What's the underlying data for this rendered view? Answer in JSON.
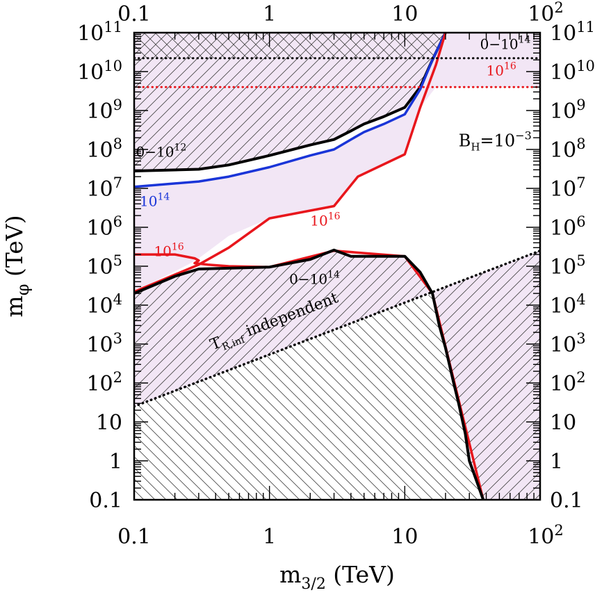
{
  "chart_data": {
    "type": "line",
    "title": "",
    "xlabel": {
      "base": "m",
      "sub": "3/2",
      "unit": " (TeV)"
    },
    "ylabel": {
      "base": "m",
      "sub": "φ",
      "unit": " (TeV)"
    },
    "xscale": "log",
    "yscale": "log",
    "xlim": [
      0.1,
      100
    ],
    "ylim": [
      0.1,
      100000000000.0
    ],
    "grid": false,
    "x_ticks": [
      {
        "value": 0.1,
        "label": "0.1"
      },
      {
        "value": 1,
        "label": "1"
      },
      {
        "value": 10,
        "label": "10"
      },
      {
        "value": 100,
        "label": "10",
        "sup": "2"
      }
    ],
    "y_ticks": [
      {
        "value": 0.1,
        "label": "0.1"
      },
      {
        "value": 1,
        "label": "1"
      },
      {
        "value": 10,
        "label": "10"
      },
      {
        "value": 100,
        "label": "10",
        "sup": "2"
      },
      {
        "value": 1000.0,
        "label": "10",
        "sup": "3"
      },
      {
        "value": 10000.0,
        "label": "10",
        "sup": "4"
      },
      {
        "value": 100000.0,
        "label": "10",
        "sup": "5"
      },
      {
        "value": 1000000.0,
        "label": "10",
        "sup": "6"
      },
      {
        "value": 10000000.0,
        "label": "10",
        "sup": "7"
      },
      {
        "value": 100000000.0,
        "label": "10",
        "sup": "8"
      },
      {
        "value": 1000000000.0,
        "label": "10",
        "sup": "9"
      },
      {
        "value": 10000000000.0,
        "label": "10",
        "sup": "10"
      },
      {
        "value": 100000000000.0,
        "label": "10",
        "sup": "11"
      }
    ],
    "colors": {
      "shade": "#f2e6f5",
      "black": "#000000",
      "blue": "#1a35d8",
      "red": "#e8161c"
    },
    "regions": [
      {
        "name": "upper-excluded",
        "fill": "shade",
        "hatch": "diag",
        "points": [
          [
            0.1,
            100000000000.0
          ],
          [
            0.1,
            28000000.0
          ],
          [
            0.3,
            31000000.0
          ],
          [
            1,
            70000000.0
          ],
          [
            3,
            180000000.0
          ],
          [
            5,
            450000000.0
          ],
          [
            10,
            1200000000.0
          ],
          [
            13,
            4000000000.0
          ],
          [
            20,
            100000000000.0
          ]
        ]
      },
      {
        "name": "upper-crosshatch",
        "fill": "none",
        "hatch": "anti",
        "points": [
          [
            0.1,
            100000000000.0
          ],
          [
            0.1,
            22000000000.0
          ],
          [
            20,
            22000000000.0
          ],
          [
            20,
            100000000000.0
          ]
        ]
      },
      {
        "name": "upper-extra-shade",
        "fill": "shade",
        "hatch": "none",
        "points": [
          [
            0.1,
            28000000.0
          ],
          [
            0.1,
            11000000.0
          ],
          [
            0.3,
            15000000.0
          ],
          [
            1,
            35000000.0
          ],
          [
            3,
            100000000.0
          ],
          [
            5,
            280000000.0
          ],
          [
            10,
            800000000.0
          ],
          [
            13,
            3500000000.0
          ],
          [
            20,
            100000000000.0
          ],
          [
            100,
            100000000000.0
          ],
          [
            100,
            4000000000.0
          ],
          [
            17,
            4000000000.0
          ],
          [
            13,
            1200000000.0
          ],
          [
            10,
            75000000.0
          ],
          [
            4.5,
            20000000.0
          ],
          [
            3,
            3500000.0
          ],
          [
            1,
            1700000.0
          ],
          [
            0.5,
            600000.0
          ],
          [
            0.3,
            160000.0
          ],
          [
            0.25,
            110000.0
          ],
          [
            0.1,
            22000.0
          ]
        ]
      },
      {
        "name": "lower-excluded",
        "fill": "shade",
        "hatch": "diag",
        "points": [
          [
            0.1,
            20000.0
          ],
          [
            0.2,
            55000.0
          ],
          [
            0.3,
            85000.0
          ],
          [
            1,
            95000.0
          ],
          [
            2,
            150000.0
          ],
          [
            3,
            260000.0
          ],
          [
            4,
            180000.0
          ],
          [
            10,
            180000.0
          ],
          [
            16,
            20000.0
          ],
          [
            20,
            800
          ],
          [
            25,
            30
          ],
          [
            30,
            1
          ],
          [
            38,
            0.1
          ],
          [
            100,
            0.1
          ],
          [
            100,
            250000.0
          ],
          [
            0.1,
            25
          ]
        ]
      },
      {
        "name": "lower-crosshatch",
        "fill": "none",
        "hatch": "anti",
        "points": [
          [
            0.1,
            25
          ],
          [
            16,
            20000.0
          ],
          [
            20,
            800
          ],
          [
            25,
            30
          ],
          [
            30,
            1
          ],
          [
            38,
            0.1
          ],
          [
            0.1,
            0.1
          ]
        ]
      }
    ],
    "series": [
      {
        "name": "black-upper",
        "label": "0−10¹²",
        "color": "black",
        "width": 4,
        "style": "solid",
        "points": [
          [
            0.1,
            28000000.0
          ],
          [
            0.3,
            31000000.0
          ],
          [
            0.5,
            40000000.0
          ],
          [
            1,
            70000000.0
          ],
          [
            2,
            130000000.0
          ],
          [
            3,
            180000000.0
          ],
          [
            4,
            300000000.0
          ],
          [
            5,
            450000000.0
          ],
          [
            7,
            700000000.0
          ],
          [
            10,
            1200000000.0
          ],
          [
            13,
            4000000000.0
          ],
          [
            16,
            20000000000.0
          ],
          [
            20,
            100000000000.0
          ]
        ]
      },
      {
        "name": "blue-upper",
        "label": "10¹⁴",
        "color": "blue",
        "width": 3.5,
        "style": "solid",
        "points": [
          [
            0.1,
            11000000.0
          ],
          [
            0.3,
            15000000.0
          ],
          [
            0.5,
            20000000.0
          ],
          [
            1,
            35000000.0
          ],
          [
            2,
            70000000.0
          ],
          [
            3,
            100000000.0
          ],
          [
            4,
            180000000.0
          ],
          [
            5,
            280000000.0
          ],
          [
            7,
            450000000.0
          ],
          [
            10,
            800000000.0
          ],
          [
            13,
            3500000000.0
          ],
          [
            16,
            20000000000.0
          ],
          [
            20,
            100000000000.0
          ]
        ]
      },
      {
        "name": "red-upper",
        "label": "10¹⁶",
        "color": "red",
        "width": 3.5,
        "style": "solid",
        "points": [
          [
            0.1,
            22000.0
          ],
          [
            0.3,
            110000.0
          ],
          [
            0.5,
            300000.0
          ],
          [
            1,
            1700000.0
          ],
          [
            3,
            3500000.0
          ],
          [
            4.5,
            20000000.0
          ],
          [
            10,
            75000000.0
          ],
          [
            13,
            1200000000.0
          ],
          [
            17,
            15000000000.0
          ],
          [
            20,
            100000000000.0
          ]
        ]
      },
      {
        "name": "red-lower-loop",
        "label": "10¹⁶",
        "color": "red",
        "width": 3.5,
        "style": "solid",
        "points": [
          [
            0.1,
            200000.0
          ],
          [
            0.2,
            200000.0
          ],
          [
            0.28,
            160000.0
          ],
          [
            0.3,
            140000.0
          ],
          [
            0.28,
            120000.0
          ],
          [
            0.35,
            110000.0
          ],
          [
            0.5,
            100000.0
          ],
          [
            1,
            95000.0
          ],
          [
            3,
            250000.0
          ],
          [
            10,
            180000.0
          ],
          [
            16,
            20000.0
          ],
          [
            38,
            0.1
          ]
        ]
      },
      {
        "name": "black-lower",
        "label": "0−10¹⁴",
        "color": "black",
        "width": 4,
        "style": "solid",
        "points": [
          [
            0.1,
            20000.0
          ],
          [
            0.2,
            55000.0
          ],
          [
            0.3,
            85000.0
          ],
          [
            1,
            95000.0
          ],
          [
            2,
            150000.0
          ],
          [
            3,
            260000.0
          ],
          [
            4,
            180000.0
          ],
          [
            10,
            180000.0
          ],
          [
            13,
            70000.0
          ],
          [
            16,
            20000.0
          ],
          [
            18,
            3000.0
          ],
          [
            20,
            800
          ],
          [
            23,
            100
          ],
          [
            25,
            30
          ],
          [
            28,
            5
          ],
          [
            30,
            1
          ],
          [
            34,
            0.3
          ],
          [
            38,
            0.1
          ]
        ]
      },
      {
        "name": "black-dotted-top",
        "label": "0−10¹⁴",
        "color": "black",
        "width": 3,
        "style": "dotted",
        "points": [
          [
            0.1,
            22000000000.0
          ],
          [
            100,
            22000000000.0
          ]
        ]
      },
      {
        "name": "red-dotted-top",
        "label": "10¹⁶",
        "color": "red",
        "width": 3,
        "style": "dotted",
        "points": [
          [
            0.1,
            4000000000.0
          ],
          [
            100,
            4000000000.0
          ]
        ]
      },
      {
        "name": "tr-independent",
        "label": "T_R,inf independent",
        "color": "black",
        "width": 3.5,
        "style": "dotted",
        "points": [
          [
            0.1,
            25
          ],
          [
            100,
            250000.0
          ]
        ]
      }
    ],
    "annotations": [
      {
        "id": "ann-black-upper",
        "text": "0−10",
        "sup": "12",
        "x": 0.103,
        "y": 65000000.0,
        "color": "black"
      },
      {
        "id": "ann-blue-upper",
        "text": "10",
        "sup": "14",
        "x": 0.11,
        "y": 3500000.0,
        "color": "blue"
      },
      {
        "id": "ann-red-upper",
        "text": "10",
        "sup": "16",
        "x": 2.0,
        "y": 1100000.0,
        "color": "red"
      },
      {
        "id": "ann-red-lower",
        "text": "10",
        "sup": "16",
        "x": 0.14,
        "y": 180000.0,
        "color": "red"
      },
      {
        "id": "ann-black-lower",
        "text": "0−10",
        "sup": "14",
        "x": 1.4,
        "y": 35000.0,
        "color": "black"
      },
      {
        "id": "ann-black-top",
        "text": "0−10",
        "sup": "14",
        "x": 36,
        "y": 38000000000.0,
        "color": "black"
      },
      {
        "id": "ann-red-top",
        "text": "10",
        "sup": "16",
        "x": 40,
        "y": 8000000000.0,
        "color": "red"
      }
    ],
    "bh_label": {
      "base": "B",
      "sub": "H",
      "rhs": "=10",
      "sup": "−3",
      "x": 25,
      "y": 120000000.0
    },
    "tr_label": {
      "base": "T",
      "sub": "R,inf",
      "rest": " independent",
      "x": 0.38,
      "y": 700.0
    }
  }
}
